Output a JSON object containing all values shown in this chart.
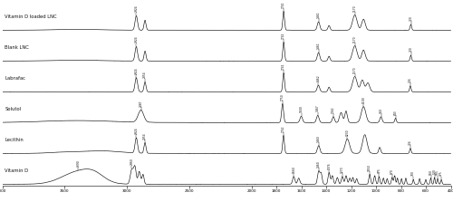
{
  "spectra_labels": [
    "Vitamin D loaded LNC",
    "Blank LNC",
    "Labrafac",
    "Solutol",
    "Lecithin",
    "Vitamin D"
  ],
  "x_ticks": [
    4000,
    3500,
    3000,
    2500,
    2000,
    1800,
    1600,
    1400,
    1200,
    1000,
    800,
    600,
    400
  ],
  "background_color": "#ffffff",
  "line_color": "#111111",
  "label_color": "#111111",
  "figure_width": 5.0,
  "figure_height": 2.23,
  "dpi": 100
}
